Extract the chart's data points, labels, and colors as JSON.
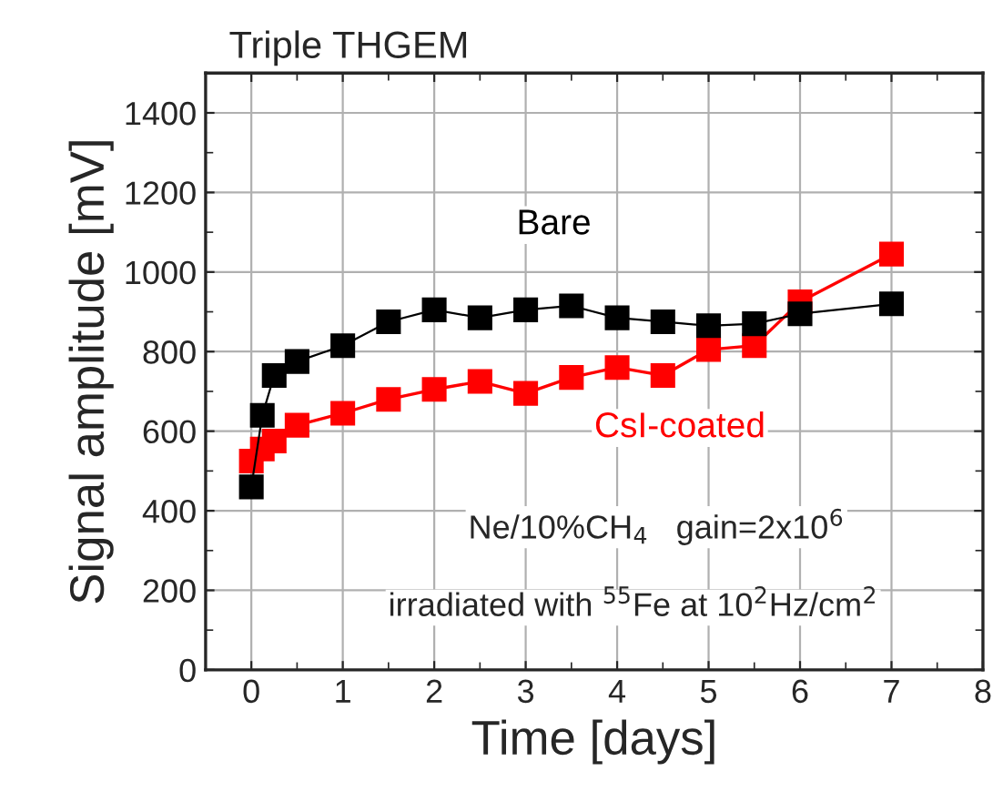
{
  "chart_data": {
    "type": "line",
    "title": "Triple THGEM",
    "xlabel": "Time [days]",
    "ylabel": "Signal amplitude [mV]",
    "x": [
      0,
      0.12,
      0.25,
      0.5,
      1,
      1.5,
      2,
      2.5,
      3,
      3.5,
      4,
      4.5,
      5,
      5.5,
      6,
      7
    ],
    "series": [
      {
        "name": "Bare",
        "color": "#000000",
        "values": [
          460,
          640,
          740,
          775,
          815,
          875,
          905,
          885,
          905,
          915,
          885,
          875,
          865,
          870,
          895,
          920
        ]
      },
      {
        "name": "CsI-coated",
        "color": "#ff0000",
        "values": [
          525,
          555,
          575,
          615,
          645,
          680,
          705,
          725,
          695,
          735,
          760,
          740,
          805,
          815,
          925,
          1045
        ]
      }
    ],
    "xlim": [
      -0.5,
      8
    ],
    "xticks": [
      0,
      1,
      2,
      3,
      4,
      5,
      6,
      7,
      8
    ],
    "ylim": [
      0,
      1500
    ],
    "yticks": [
      0,
      200,
      400,
      600,
      800,
      1000,
      1200,
      1400
    ],
    "grid": true,
    "legend": false,
    "marker": "square",
    "line_style": "solid",
    "annotations": [
      "Ne/10%CH$_{4}$   gain=2x10$^{6}$",
      "irradiated with $^{55}$Fe at 10$^{2}$Hz/cm$^{2}$"
    ]
  }
}
